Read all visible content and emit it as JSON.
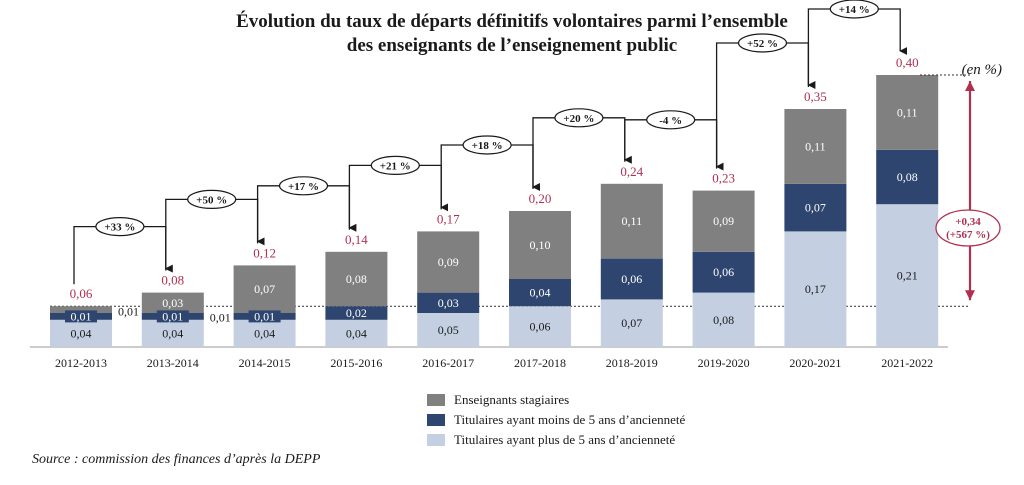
{
  "title": {
    "line1": "Évolution du taux de départs définitifs volontaires parmi l’ensemble",
    "line2": "des enseignants de l’enseignement public"
  },
  "unit_label": "(en %)",
  "source": "Source : commission des finances d’après la DEPP",
  "colors": {
    "stagiaires": "#808080",
    "titulaires_moins5": "#2e4570",
    "titulaires_plus5": "#c4d0e2",
    "total": "#b03050",
    "dashed": "#333333"
  },
  "chart_data": {
    "type": "bar",
    "stacked": true,
    "categories": [
      "2012-2013",
      "2013-2014",
      "2014-2015",
      "2015-2016",
      "2016-2017",
      "2017-2018",
      "2018-2019",
      "2019-2020",
      "2020-2021",
      "2021-2022"
    ],
    "series": [
      {
        "name": "Titulaires ayant plus de 5 ans d’ancienneté",
        "key": "plus5",
        "values": [
          0.04,
          0.04,
          0.04,
          0.04,
          0.05,
          0.06,
          0.07,
          0.08,
          0.17,
          0.21
        ],
        "labels": [
          "0,04",
          "0,04",
          "0,04",
          "0,04",
          "0,05",
          "0,06",
          "0,07",
          "0,08",
          "0,17",
          "0,21"
        ]
      },
      {
        "name": "Titulaires ayant moins de 5 ans d’ancienneté",
        "key": "moins5",
        "values": [
          0.01,
          0.01,
          0.01,
          0.02,
          0.03,
          0.04,
          0.06,
          0.06,
          0.07,
          0.08
        ],
        "labels": [
          "0,01",
          "0,01",
          "0,01",
          "0,02",
          "0,03",
          "0,04",
          "0,06",
          "0,06",
          "0,07",
          "0,08"
        ]
      },
      {
        "name": "Enseignants stagiaires",
        "key": "stagiaires",
        "values": [
          0.01,
          0.03,
          0.07,
          0.08,
          0.09,
          0.1,
          0.11,
          0.09,
          0.11,
          0.11
        ],
        "labels": [
          "0,01",
          "0,03",
          "0,07",
          "0,08",
          "0,09",
          "0,10",
          "0,11",
          "0,09",
          "0,11",
          "0,11"
        ]
      }
    ],
    "totals": [
      0.06,
      0.08,
      0.12,
      0.14,
      0.17,
      0.2,
      0.24,
      0.23,
      0.35,
      0.4
    ],
    "total_labels": [
      "0,06",
      "0,08",
      "0,12",
      "0,14",
      "0,17",
      "0,20",
      "0,24",
      "0,23",
      "0,35",
      "0,40"
    ],
    "growth_labels": [
      "+33 %",
      "+50 %",
      "+17 %",
      "+21 %",
      "+18 %",
      "+20 %",
      "-4 %",
      "+52 %",
      "+14 %"
    ],
    "overall_change": {
      "line1": "+0,34",
      "line2": "(+567 %)"
    },
    "legend": [
      "Enseignants stagiaires",
      "Titulaires ayant moins de 5 ans d’ancienneté",
      "Titulaires ayant plus de 5 ans d’ancienneté"
    ],
    "ylim": [
      0,
      0.44
    ]
  }
}
